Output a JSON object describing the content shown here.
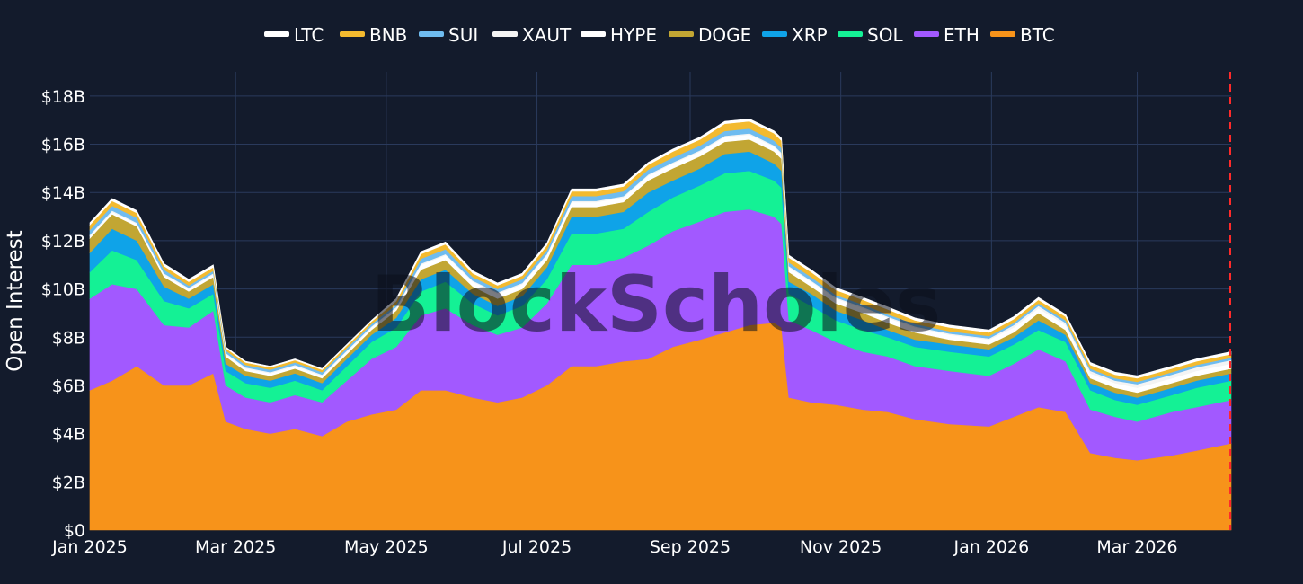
{
  "chart_data": {
    "type": "area",
    "stacked": true,
    "xlabel": "",
    "ylabel": "Open Interest",
    "ylim": [
      0,
      19
    ],
    "y_unit": "B",
    "y_ticks": [
      "$0",
      "$2B",
      "$4B",
      "$6B",
      "$8B",
      "$10B",
      "$12B",
      "$14B",
      "$16B",
      "$18B"
    ],
    "x_ticks": [
      "Jan 2025",
      "Mar 2025",
      "May 2025",
      "Jul 2025",
      "Sep 2025",
      "Nov 2025",
      "Jan 2026",
      "Mar 2026"
    ],
    "x_tick_dates": [
      "2025-01-01",
      "2025-03-01",
      "2025-05-01",
      "2025-07-01",
      "2025-09-01",
      "2025-11-01",
      "2026-01-01",
      "2026-03-01"
    ],
    "x_range": [
      "2025-01-01",
      "2026-04-08"
    ],
    "marker_line": {
      "date": "2026-04-08",
      "color": "#ff2a2a",
      "style": "dashed"
    },
    "legend_position": "top",
    "legend_order": [
      "LTC",
      "BNB",
      "SUI",
      "XAUT",
      "HYPE",
      "DOGE",
      "XRP",
      "SOL",
      "ETH",
      "BTC"
    ],
    "grid": true,
    "watermark": "BlockScholes",
    "x": [
      "2025-01-01",
      "2025-01-10",
      "2025-01-20",
      "2025-01-31",
      "2025-02-10",
      "2025-02-20",
      "2025-02-25",
      "2025-03-05",
      "2025-03-15",
      "2025-03-25",
      "2025-04-05",
      "2025-04-15",
      "2025-04-25",
      "2025-05-05",
      "2025-05-15",
      "2025-05-25",
      "2025-06-05",
      "2025-06-15",
      "2025-06-25",
      "2025-07-05",
      "2025-07-15",
      "2025-07-25",
      "2025-08-05",
      "2025-08-15",
      "2025-08-25",
      "2025-09-05",
      "2025-09-15",
      "2025-09-25",
      "2025-10-05",
      "2025-10-08",
      "2025-10-11",
      "2025-10-20",
      "2025-10-30",
      "2025-11-10",
      "2025-11-20",
      "2025-12-01",
      "2025-12-15",
      "2025-12-31",
      "2026-01-10",
      "2026-01-20",
      "2026-01-31",
      "2026-02-10",
      "2026-02-20",
      "2026-03-01",
      "2026-03-15",
      "2026-03-25",
      "2026-04-08"
    ],
    "series": [
      {
        "name": "BTC",
        "color": "#f7931a",
        "values": [
          5.8,
          6.2,
          6.8,
          6.0,
          6.0,
          6.5,
          4.5,
          4.2,
          4.0,
          4.2,
          3.9,
          4.5,
          4.8,
          5.0,
          5.8,
          5.8,
          5.5,
          5.3,
          5.5,
          6.0,
          6.8,
          6.8,
          7.0,
          7.1,
          7.6,
          7.9,
          8.2,
          8.5,
          8.6,
          8.4,
          5.5,
          5.3,
          5.2,
          5.0,
          4.9,
          4.6,
          4.4,
          4.3,
          4.7,
          5.1,
          4.9,
          3.2,
          3.0,
          2.9,
          3.1,
          3.3,
          3.6
        ]
      },
      {
        "name": "ETH",
        "color": "#a259ff",
        "values": [
          3.8,
          4.0,
          3.2,
          2.5,
          2.4,
          2.6,
          1.5,
          1.3,
          1.3,
          1.4,
          1.4,
          1.7,
          2.3,
          2.6,
          3.1,
          3.4,
          3.0,
          2.8,
          2.9,
          3.4,
          4.2,
          4.2,
          4.3,
          4.7,
          4.8,
          4.9,
          5.0,
          4.8,
          4.4,
          4.3,
          3.2,
          3.0,
          2.6,
          2.4,
          2.3,
          2.2,
          2.2,
          2.1,
          2.2,
          2.4,
          2.1,
          1.8,
          1.7,
          1.6,
          1.8,
          1.8,
          1.8
        ]
      },
      {
        "name": "SOL",
        "color": "#14f195",
        "values": [
          1.1,
          1.4,
          1.2,
          1.0,
          0.8,
          0.7,
          0.6,
          0.6,
          0.6,
          0.6,
          0.5,
          0.6,
          0.7,
          0.8,
          1.0,
          1.1,
          0.9,
          0.8,
          0.9,
          1.0,
          1.3,
          1.3,
          1.2,
          1.4,
          1.4,
          1.5,
          1.6,
          1.6,
          1.5,
          1.5,
          1.1,
          1.0,
          0.9,
          0.9,
          0.8,
          0.8,
          0.8,
          0.8,
          0.8,
          0.8,
          0.8,
          0.8,
          0.7,
          0.7,
          0.7,
          0.8,
          0.8
        ]
      },
      {
        "name": "XRP",
        "color": "#0fa3e8",
        "values": [
          0.8,
          0.9,
          0.8,
          0.6,
          0.4,
          0.4,
          0.3,
          0.3,
          0.3,
          0.3,
          0.3,
          0.3,
          0.3,
          0.4,
          0.5,
          0.5,
          0.4,
          0.4,
          0.4,
          0.5,
          0.7,
          0.7,
          0.7,
          0.8,
          0.7,
          0.7,
          0.8,
          0.8,
          0.7,
          0.7,
          0.5,
          0.5,
          0.4,
          0.4,
          0.3,
          0.3,
          0.3,
          0.3,
          0.3,
          0.4,
          0.3,
          0.3,
          0.3,
          0.3,
          0.3,
          0.3,
          0.3
        ]
      },
      {
        "name": "DOGE",
        "color": "#c2a633",
        "values": [
          0.6,
          0.6,
          0.6,
          0.4,
          0.3,
          0.3,
          0.3,
          0.2,
          0.2,
          0.2,
          0.2,
          0.2,
          0.2,
          0.3,
          0.4,
          0.4,
          0.3,
          0.3,
          0.3,
          0.3,
          0.4,
          0.4,
          0.4,
          0.5,
          0.5,
          0.5,
          0.5,
          0.5,
          0.5,
          0.5,
          0.4,
          0.3,
          0.3,
          0.3,
          0.3,
          0.3,
          0.2,
          0.2,
          0.2,
          0.3,
          0.2,
          0.2,
          0.2,
          0.2,
          0.2,
          0.2,
          0.2
        ]
      },
      {
        "name": "HYPE",
        "color": "#ffffff",
        "values": [
          0.1,
          0.1,
          0.1,
          0.1,
          0.1,
          0.1,
          0.1,
          0.1,
          0.1,
          0.1,
          0.1,
          0.1,
          0.1,
          0.1,
          0.2,
          0.2,
          0.2,
          0.2,
          0.2,
          0.2,
          0.2,
          0.2,
          0.2,
          0.2,
          0.2,
          0.2,
          0.2,
          0.2,
          0.2,
          0.2,
          0.2,
          0.2,
          0.2,
          0.2,
          0.2,
          0.2,
          0.2,
          0.2,
          0.2,
          0.2,
          0.2,
          0.2,
          0.2,
          0.2,
          0.2,
          0.2,
          0.2
        ]
      },
      {
        "name": "XAUT",
        "color": "#f4f4f4",
        "values": [
          0.05,
          0.05,
          0.05,
          0.05,
          0.05,
          0.05,
          0.05,
          0.05,
          0.05,
          0.05,
          0.05,
          0.05,
          0.05,
          0.05,
          0.05,
          0.05,
          0.05,
          0.05,
          0.05,
          0.05,
          0.05,
          0.05,
          0.05,
          0.05,
          0.05,
          0.05,
          0.05,
          0.05,
          0.05,
          0.05,
          0.05,
          0.05,
          0.05,
          0.05,
          0.05,
          0.05,
          0.05,
          0.05,
          0.1,
          0.1,
          0.1,
          0.1,
          0.1,
          0.15,
          0.15,
          0.15,
          0.15
        ]
      },
      {
        "name": "SUI",
        "color": "#6fbcf0",
        "values": [
          0.2,
          0.2,
          0.2,
          0.15,
          0.1,
          0.1,
          0.1,
          0.1,
          0.1,
          0.1,
          0.1,
          0.1,
          0.1,
          0.1,
          0.2,
          0.2,
          0.15,
          0.15,
          0.15,
          0.15,
          0.2,
          0.2,
          0.2,
          0.2,
          0.2,
          0.2,
          0.2,
          0.2,
          0.2,
          0.2,
          0.15,
          0.15,
          0.1,
          0.1,
          0.1,
          0.1,
          0.1,
          0.1,
          0.1,
          0.1,
          0.1,
          0.1,
          0.1,
          0.1,
          0.1,
          0.1,
          0.1
        ]
      },
      {
        "name": "BNB",
        "color": "#f3ba2f",
        "values": [
          0.2,
          0.2,
          0.2,
          0.15,
          0.15,
          0.15,
          0.1,
          0.1,
          0.1,
          0.1,
          0.1,
          0.1,
          0.1,
          0.15,
          0.2,
          0.2,
          0.15,
          0.15,
          0.15,
          0.2,
          0.2,
          0.2,
          0.2,
          0.2,
          0.25,
          0.25,
          0.3,
          0.3,
          0.3,
          0.3,
          0.2,
          0.2,
          0.2,
          0.2,
          0.2,
          0.15,
          0.15,
          0.15,
          0.15,
          0.15,
          0.15,
          0.15,
          0.15,
          0.15,
          0.15,
          0.15,
          0.15
        ]
      },
      {
        "name": "LTC",
        "color": "#ffffff",
        "values": [
          0.1,
          0.1,
          0.1,
          0.1,
          0.1,
          0.1,
          0.05,
          0.05,
          0.05,
          0.05,
          0.05,
          0.05,
          0.05,
          0.1,
          0.1,
          0.1,
          0.1,
          0.1,
          0.1,
          0.1,
          0.1,
          0.1,
          0.1,
          0.1,
          0.1,
          0.1,
          0.1,
          0.1,
          0.1,
          0.1,
          0.1,
          0.1,
          0.1,
          0.1,
          0.1,
          0.1,
          0.1,
          0.1,
          0.1,
          0.1,
          0.1,
          0.1,
          0.1,
          0.1,
          0.1,
          0.1,
          0.1
        ]
      }
    ]
  }
}
